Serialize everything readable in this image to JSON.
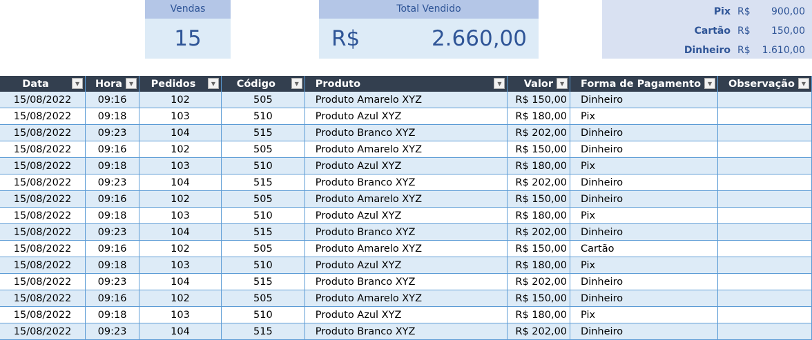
{
  "summary": {
    "vendas_label": "Vendas",
    "vendas_value": "15",
    "total_label": "Total Vendido",
    "total_currency": "R$",
    "total_value": "2.660,00",
    "payments": [
      {
        "label": "Pix",
        "currency": "R$",
        "value": "900,00"
      },
      {
        "label": "Cartão",
        "currency": "R$",
        "value": "150,00"
      },
      {
        "label": "Dinheiro",
        "currency": "R$",
        "value": "1.610,00"
      }
    ]
  },
  "table": {
    "headers": [
      "Data",
      "Hora",
      "Pedidos",
      "Código",
      "Produto",
      "Valor",
      "Forma de Pagamento",
      "Observação"
    ],
    "rows": [
      [
        "15/08/2022",
        "09:16",
        "102",
        "505",
        "Produto Amarelo XYZ",
        "R$ 150,00",
        "Dinheiro",
        ""
      ],
      [
        "15/08/2022",
        "09:18",
        "103",
        "510",
        "Produto Azul XYZ",
        "R$ 180,00",
        "Pix",
        ""
      ],
      [
        "15/08/2022",
        "09:23",
        "104",
        "515",
        "Produto Branco XYZ",
        "R$ 202,00",
        "Dinheiro",
        ""
      ],
      [
        "15/08/2022",
        "09:16",
        "102",
        "505",
        "Produto Amarelo XYZ",
        "R$ 150,00",
        "Dinheiro",
        ""
      ],
      [
        "15/08/2022",
        "09:18",
        "103",
        "510",
        "Produto Azul XYZ",
        "R$ 180,00",
        "Pix",
        ""
      ],
      [
        "15/08/2022",
        "09:23",
        "104",
        "515",
        "Produto Branco XYZ",
        "R$ 202,00",
        "Dinheiro",
        ""
      ],
      [
        "15/08/2022",
        "09:16",
        "102",
        "505",
        "Produto Amarelo XYZ",
        "R$ 150,00",
        "Dinheiro",
        ""
      ],
      [
        "15/08/2022",
        "09:18",
        "103",
        "510",
        "Produto Azul XYZ",
        "R$ 180,00",
        "Pix",
        ""
      ],
      [
        "15/08/2022",
        "09:23",
        "104",
        "515",
        "Produto Branco XYZ",
        "R$ 202,00",
        "Dinheiro",
        ""
      ],
      [
        "15/08/2022",
        "09:16",
        "102",
        "505",
        "Produto Amarelo XYZ",
        "R$ 150,00",
        "Cartão",
        ""
      ],
      [
        "15/08/2022",
        "09:18",
        "103",
        "510",
        "Produto Azul XYZ",
        "R$ 180,00",
        "Pix",
        ""
      ],
      [
        "15/08/2022",
        "09:23",
        "104",
        "515",
        "Produto Branco XYZ",
        "R$ 202,00",
        "Dinheiro",
        ""
      ],
      [
        "15/08/2022",
        "09:16",
        "102",
        "505",
        "Produto Amarelo XYZ",
        "R$ 150,00",
        "Dinheiro",
        ""
      ],
      [
        "15/08/2022",
        "09:18",
        "103",
        "510",
        "Produto Azul XYZ",
        "R$ 180,00",
        "Pix",
        ""
      ],
      [
        "15/08/2022",
        "09:23",
        "104",
        "515",
        "Produto Branco XYZ",
        "R$ 202,00",
        "Dinheiro",
        ""
      ]
    ]
  }
}
